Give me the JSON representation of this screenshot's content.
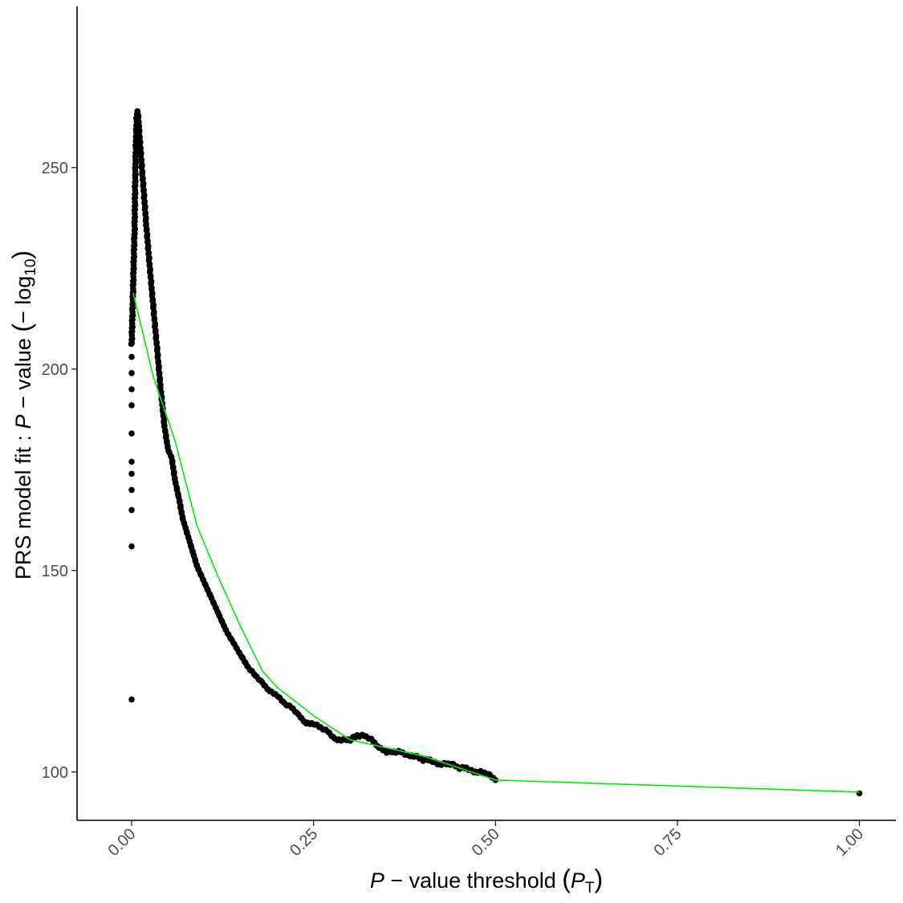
{
  "chart_data": {
    "type": "scatter",
    "title": "",
    "xlabel": {
      "italic": "P",
      "text": " − value threshold ",
      "open_paren": "(",
      "sym": "P",
      "sub": "T",
      "close_paren": ")"
    },
    "ylabel": {
      "text": "PRS model fit : ",
      "italic": "P",
      "text2": " − value ",
      "open_paren": "(",
      "neg_log": "− log",
      "sub": "10",
      "close_paren": ")"
    },
    "xlim": [
      -0.075,
      1.05
    ],
    "ylim": [
      88,
      290
    ],
    "grid": false,
    "x_ticks": [
      0.0,
      0.25,
      0.5,
      0.75,
      1.0
    ],
    "x_tick_labels": [
      "0.00",
      "0.25",
      "0.50",
      "0.75",
      "1.00"
    ],
    "y_ticks": [
      100,
      150,
      200,
      250
    ],
    "y_tick_labels": [
      "100",
      "150",
      "200",
      "250"
    ],
    "point_color": "#000000",
    "fit_color": "#00ee00",
    "isolated_points": [
      {
        "x": 0.0,
        "y": 118
      },
      {
        "x": 0.0,
        "y": 156
      },
      {
        "x": 0.0,
        "y": 165
      },
      {
        "x": 0.0,
        "y": 170
      },
      {
        "x": 0.0,
        "y": 174
      },
      {
        "x": 0.0,
        "y": 177
      },
      {
        "x": 0.0,
        "y": 184
      },
      {
        "x": 0.0,
        "y": 191
      },
      {
        "x": 0.0,
        "y": 195
      },
      {
        "x": 0.0,
        "y": 199
      },
      {
        "x": 0.0,
        "y": 203
      },
      {
        "x": 1.0,
        "y": 94.7
      }
    ],
    "dense_series": {
      "name": "",
      "x": [
        0.0,
        0.002,
        0.004,
        0.005,
        0.006,
        0.007,
        0.008,
        0.009,
        0.01,
        0.012,
        0.015,
        0.02,
        0.025,
        0.03,
        0.035,
        0.04,
        0.045,
        0.05,
        0.055,
        0.06,
        0.065,
        0.07,
        0.075,
        0.08,
        0.085,
        0.09,
        0.095,
        0.1,
        0.11,
        0.12,
        0.13,
        0.14,
        0.15,
        0.16,
        0.17,
        0.18,
        0.19,
        0.2,
        0.21,
        0.22,
        0.23,
        0.24,
        0.25,
        0.26,
        0.27,
        0.28,
        0.29,
        0.3,
        0.31,
        0.32,
        0.33,
        0.34,
        0.35,
        0.36,
        0.37,
        0.38,
        0.39,
        0.4,
        0.41,
        0.42,
        0.43,
        0.44,
        0.45,
        0.46,
        0.47,
        0.48,
        0.49,
        0.5
      ],
      "y": [
        206,
        220,
        235,
        248,
        257,
        262,
        264,
        263,
        260,
        255,
        248,
        236,
        225,
        215,
        205,
        195,
        186,
        180,
        178,
        172,
        168,
        163,
        160,
        157,
        154,
        151,
        149,
        147,
        143,
        139,
        135,
        132,
        129,
        126,
        124,
        122,
        120,
        119,
        117,
        116,
        114,
        112,
        112,
        111,
        110,
        108,
        108,
        108,
        109,
        109,
        108,
        106,
        105,
        105,
        105,
        104,
        104,
        103,
        103,
        102,
        102,
        102,
        101,
        101,
        100,
        100,
        99.5,
        98
      ]
    },
    "fit_line": {
      "x": [
        0.002,
        0.03,
        0.06,
        0.09,
        0.12,
        0.15,
        0.18,
        0.2,
        0.25,
        0.3,
        0.35,
        0.4,
        0.45,
        0.5,
        1.0
      ],
      "y": [
        219,
        198,
        182,
        161,
        148,
        136,
        125,
        121,
        114,
        108,
        106,
        104,
        101,
        98,
        95
      ]
    }
  }
}
